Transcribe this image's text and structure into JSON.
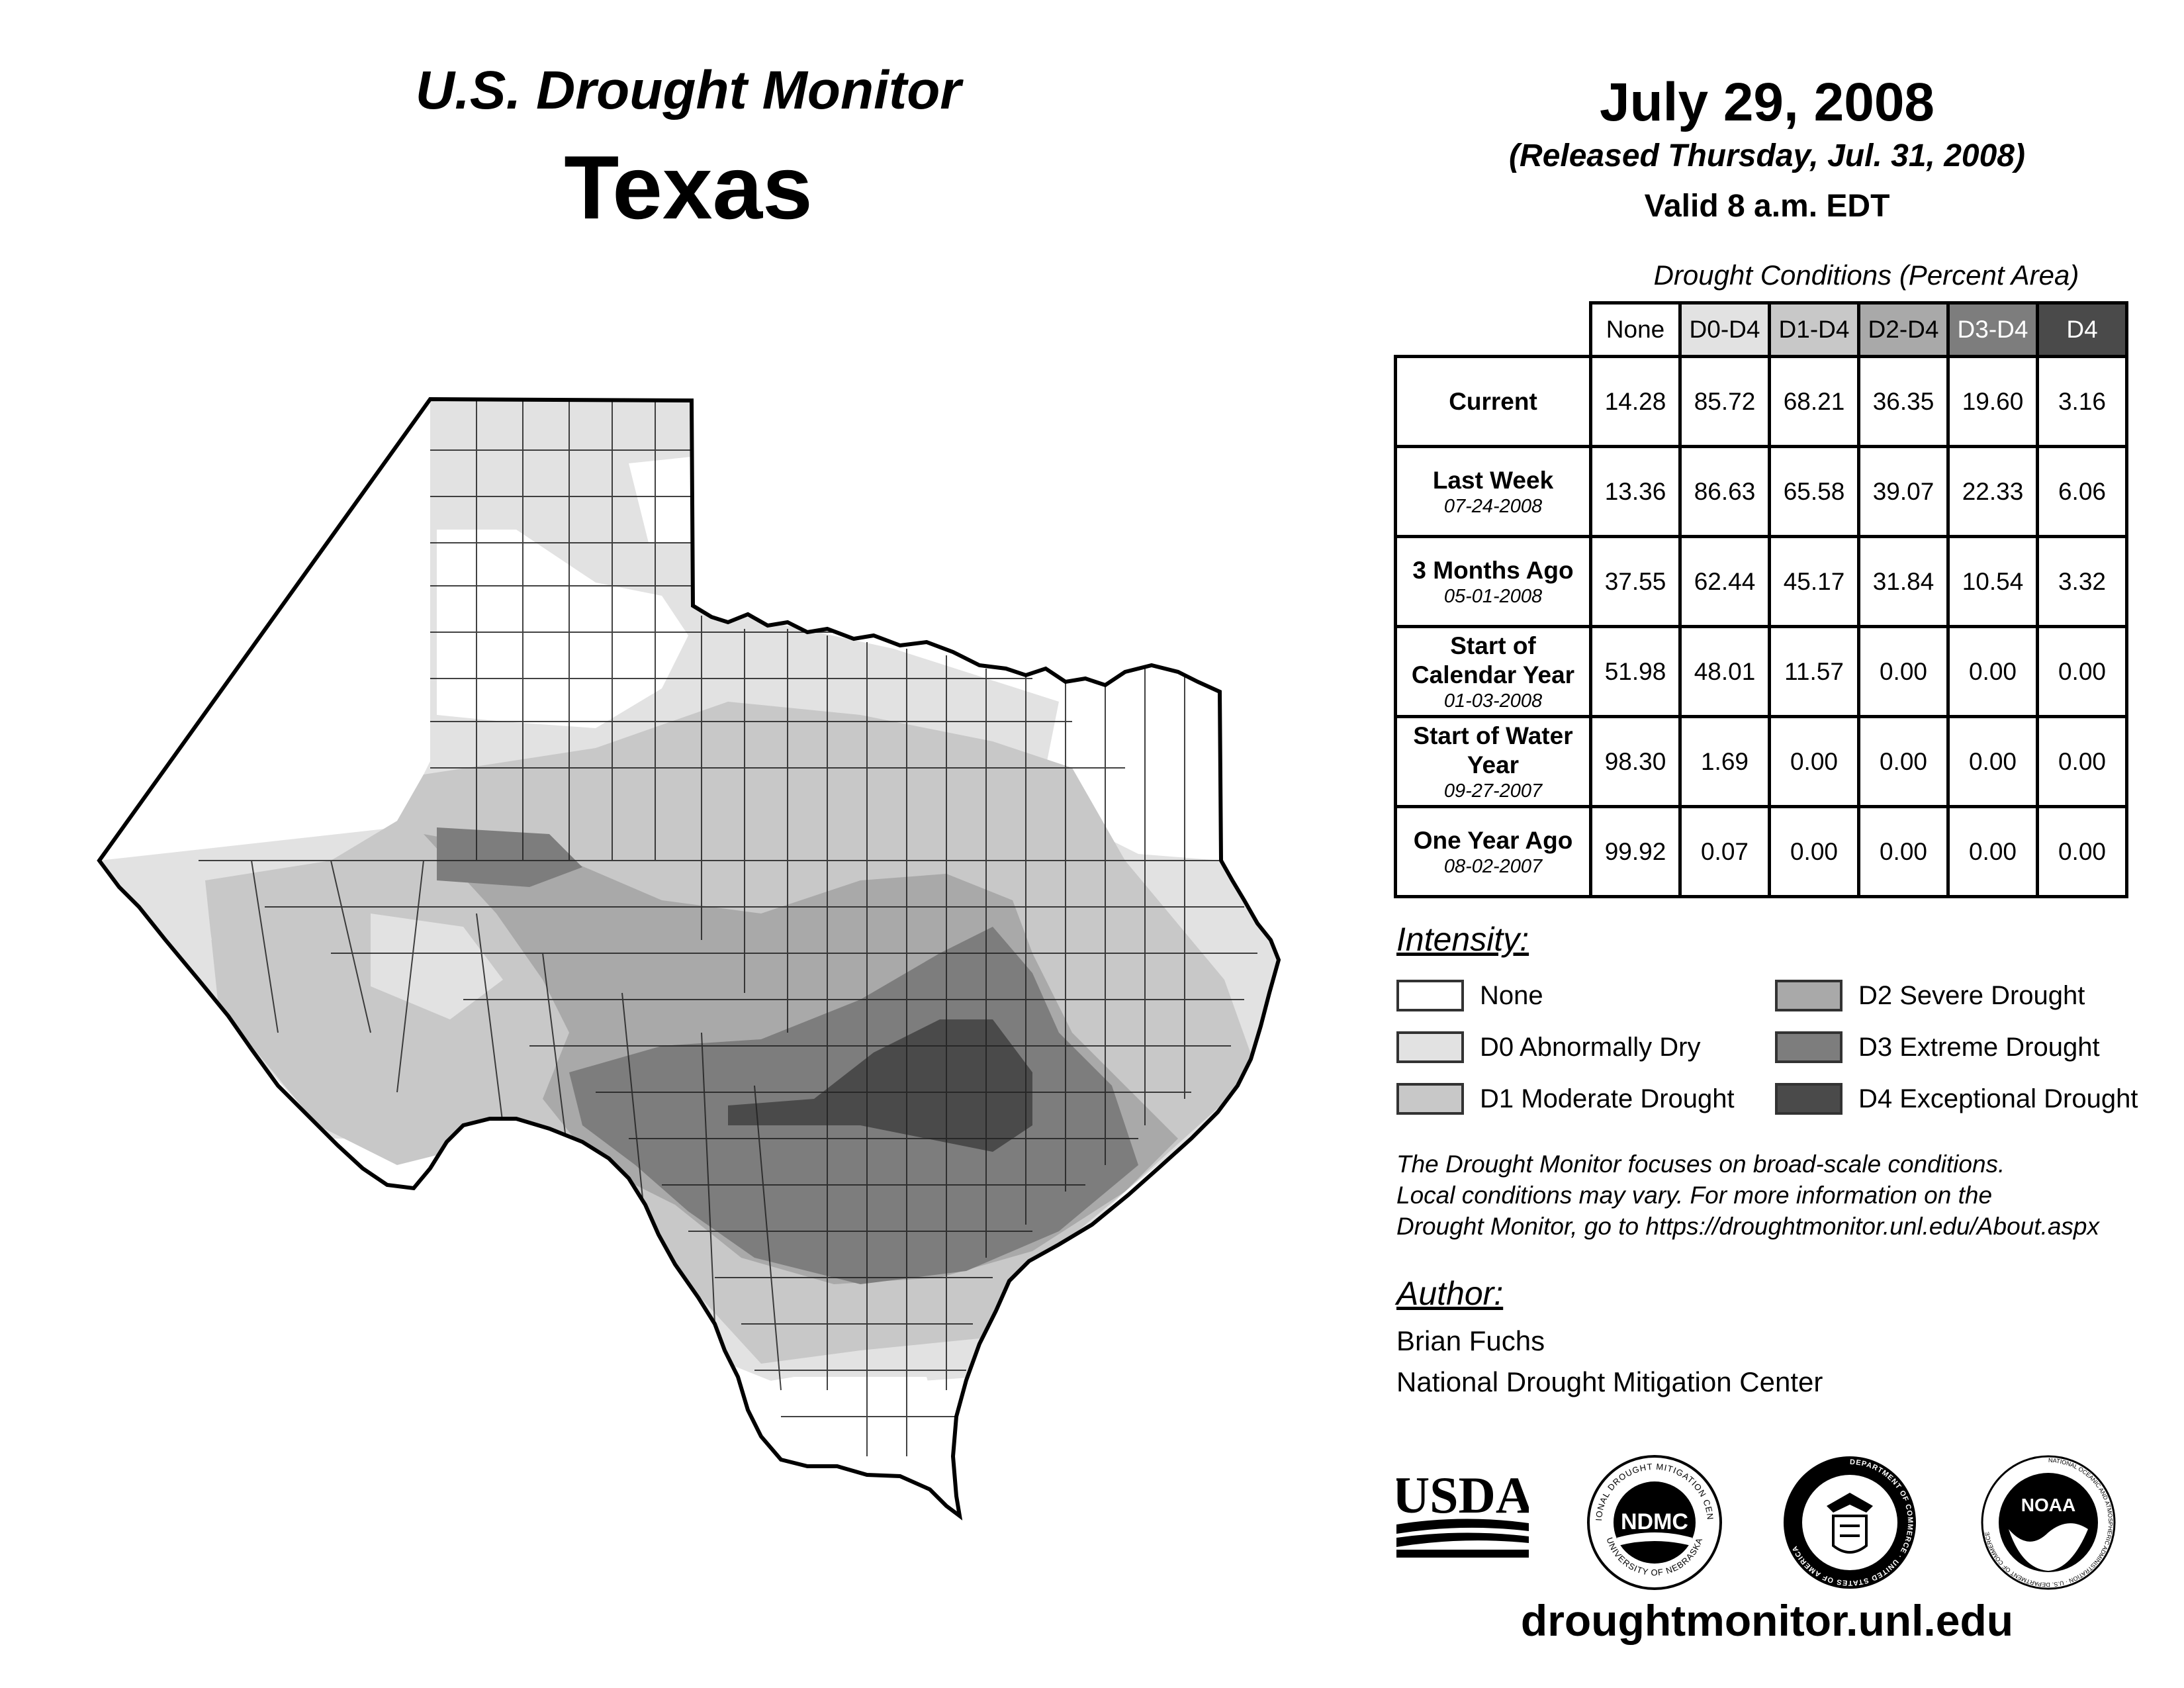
{
  "header": {
    "title": "U.S. Drought Monitor",
    "state": "Texas",
    "date": "July 29, 2008",
    "released": "(Released Thursday, Jul. 31, 2008)",
    "valid": "Valid 8 a.m. EDT"
  },
  "conditions": {
    "title": "Drought Conditions (Percent Area)",
    "columns": [
      "None",
      "D0-D4",
      "D1-D4",
      "D2-D4",
      "D3-D4",
      "D4"
    ],
    "rows": [
      {
        "label": "Current",
        "date": "",
        "values": [
          "14.28",
          "85.72",
          "68.21",
          "36.35",
          "19.60",
          "3.16"
        ]
      },
      {
        "label": "Last Week",
        "date": "07-24-2008",
        "values": [
          "13.36",
          "86.63",
          "65.58",
          "39.07",
          "22.33",
          "6.06"
        ]
      },
      {
        "label": "3 Months Ago",
        "date": "05-01-2008",
        "values": [
          "37.55",
          "62.44",
          "45.17",
          "31.84",
          "10.54",
          "3.32"
        ]
      },
      {
        "label": "Start of Calendar Year",
        "date": "01-03-2008",
        "values": [
          "51.98",
          "48.01",
          "11.57",
          "0.00",
          "0.00",
          "0.00"
        ]
      },
      {
        "label": "Start of Water Year",
        "date": "09-27-2007",
        "values": [
          "98.30",
          "1.69",
          "0.00",
          "0.00",
          "0.00",
          "0.00"
        ]
      },
      {
        "label": "One Year Ago",
        "date": "08-02-2007",
        "values": [
          "99.92",
          "0.07",
          "0.00",
          "0.00",
          "0.00",
          "0.00"
        ]
      }
    ]
  },
  "legend": {
    "title": "Intensity:",
    "items": [
      {
        "label": "None",
        "color": "#ffffff"
      },
      {
        "label": "D0 Abnormally Dry",
        "color": "#e2e2e2"
      },
      {
        "label": "D1 Moderate Drought",
        "color": "#c8c8c8"
      },
      {
        "label": "D2 Severe Drought",
        "color": "#a9a9a9"
      },
      {
        "label": "D3 Extreme Drought",
        "color": "#7d7d7d"
      },
      {
        "label": "D4 Exceptional Drought",
        "color": "#4a4a4a"
      }
    ]
  },
  "note": [
    "The Drought Monitor focuses on broad-scale conditions.",
    "Local conditions may vary. For more information on the",
    "Drought Monitor, go to https://droughtmonitor.unl.edu/About.aspx"
  ],
  "author": {
    "title": "Author:",
    "name": "Brian Fuchs",
    "org": "National Drought Mitigation Center"
  },
  "logos": {
    "usda": "USDA",
    "ndmc": "NDMC",
    "ndmc_ring_top": "NATIONAL DROUGHT MITIGATION CENTER",
    "ndmc_ring_bottom": "UNIVERSITY OF NEBRASKA",
    "commerce_ring": "DEPARTMENT OF COMMERCE · UNITED STATES OF AMERICA",
    "noaa": "NOAA",
    "noaa_ring": "NATIONAL OCEANIC AND ATMOSPHERIC ADMINISTRATION · U.S. DEPARTMENT OF COMMERCE"
  },
  "footer_url": "droughtmonitor.unl.edu"
}
